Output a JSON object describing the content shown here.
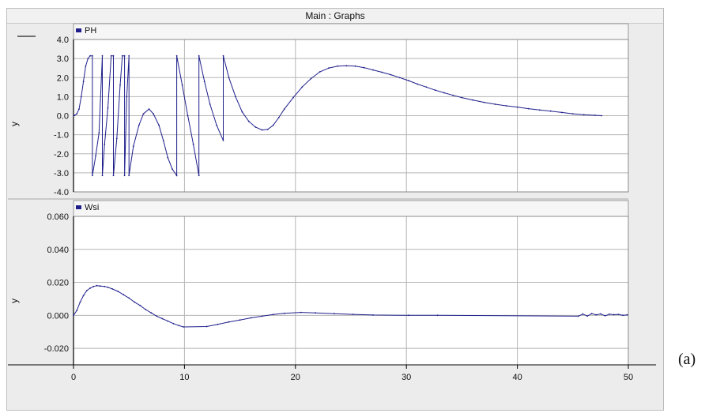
{
  "window": {
    "title": "Main : Graphs"
  },
  "caption": "(a)",
  "colors": {
    "series": "#1f1f8c",
    "grid": "#b5b5b5",
    "axis": "#000000"
  },
  "chart_data": [
    {
      "type": "line",
      "legend": "PH",
      "ylabel": "y",
      "xlim": [
        0,
        50
      ],
      "ylim": [
        -4.0,
        4.0
      ],
      "yticks": [
        "4.0",
        "3.0",
        "2.0",
        "1.0",
        "0.0",
        "-1.0",
        "-2.0",
        "-3.0",
        "-4.0"
      ],
      "grid": true,
      "x": [
        0.0,
        0.1,
        0.3,
        0.5,
        0.7,
        0.9,
        1.1,
        1.3,
        1.5,
        1.7,
        1.7,
        2.0,
        2.3,
        2.6,
        2.6,
        2.8,
        3.1,
        3.4,
        3.6,
        3.6,
        3.9,
        4.2,
        4.4,
        4.6,
        4.6,
        4.8,
        5.0,
        5.0,
        5.4,
        5.9,
        6.3,
        6.8,
        7.2,
        7.7,
        8.1,
        8.5,
        8.9,
        9.3,
        9.3,
        9.8,
        10.3,
        10.8,
        11.3,
        11.3,
        11.8,
        12.3,
        12.9,
        13.5,
        13.5,
        14.0,
        14.6,
        15.2,
        15.8,
        16.4,
        17.0,
        17.5,
        18.0,
        18.5,
        19.0,
        19.8,
        20.6,
        21.4,
        22.2,
        23.0,
        23.8,
        24.6,
        25.4,
        26.2,
        27.0,
        27.8,
        28.6,
        29.4,
        30.2,
        31.0,
        31.8,
        32.6,
        33.4,
        34.2,
        35.0,
        36.0,
        37.0,
        38.0,
        39.0,
        40.0,
        41.0,
        42.0,
        43.0,
        44.0,
        45.0,
        46.0,
        47.0,
        47.6
      ],
      "y": [
        0.0,
        0.02,
        0.1,
        0.35,
        1.0,
        1.8,
        2.6,
        3.0,
        3.14,
        3.14,
        -3.14,
        -2.1,
        -0.9,
        3.14,
        -3.14,
        -1.5,
        0.4,
        3.14,
        3.14,
        -3.14,
        -1.2,
        1.6,
        3.14,
        3.14,
        -3.14,
        1.0,
        3.14,
        -3.14,
        -1.6,
        -0.5,
        0.1,
        0.35,
        0.1,
        -0.5,
        -1.3,
        -2.2,
        -2.8,
        -3.14,
        3.14,
        1.6,
        0.0,
        -1.5,
        -3.14,
        3.14,
        1.8,
        0.6,
        -0.5,
        -1.3,
        3.14,
        2.0,
        1.0,
        0.2,
        -0.3,
        -0.6,
        -0.75,
        -0.72,
        -0.5,
        -0.1,
        0.35,
        0.95,
        1.5,
        1.95,
        2.3,
        2.5,
        2.6,
        2.62,
        2.6,
        2.52,
        2.4,
        2.28,
        2.15,
        2.0,
        1.84,
        1.66,
        1.5,
        1.34,
        1.2,
        1.07,
        0.95,
        0.82,
        0.7,
        0.6,
        0.52,
        0.45,
        0.37,
        0.3,
        0.24,
        0.17,
        0.1,
        0.05,
        0.02,
        0.0
      ]
    },
    {
      "type": "line",
      "legend": "Wsi",
      "ylabel": "y",
      "xlim": [
        0,
        50
      ],
      "ylim": [
        -0.03,
        0.06
      ],
      "yticks": [
        "0.060",
        "0.040",
        "0.020",
        "0.000",
        "-0.020"
      ],
      "xticks": [
        "0",
        "10",
        "20",
        "30",
        "40",
        "50"
      ],
      "grid": true,
      "x": [
        0.0,
        0.3,
        0.6,
        0.9,
        1.2,
        1.5,
        1.8,
        2.1,
        2.4,
        2.8,
        3.1,
        3.5,
        4.0,
        4.5,
        5.0,
        5.5,
        6.0,
        6.5,
        7.0,
        7.5,
        8.0,
        8.5,
        9.0,
        9.5,
        9.9,
        12.0,
        13.0,
        14.0,
        15.0,
        16.0,
        17.0,
        18.0,
        19.0,
        20.5,
        21.8,
        23.5,
        25.2,
        27.0,
        30.2,
        32.8,
        45.5,
        45.9,
        46.3,
        46.7,
        47.1,
        47.5,
        47.9,
        48.3,
        48.7,
        49.1,
        49.5,
        49.9
      ],
      "y": [
        0.0,
        0.003,
        0.008,
        0.012,
        0.015,
        0.0165,
        0.0175,
        0.018,
        0.0178,
        0.0175,
        0.017,
        0.016,
        0.0145,
        0.0125,
        0.0105,
        0.008,
        0.006,
        0.0035,
        0.0015,
        -0.0005,
        -0.002,
        -0.0035,
        -0.005,
        -0.0062,
        -0.007,
        -0.0068,
        -0.0055,
        -0.004,
        -0.0028,
        -0.0015,
        -0.0005,
        0.0005,
        0.0012,
        0.0018,
        0.0015,
        0.001,
        0.0006,
        0.0002,
        0.0,
        0.0,
        -0.0005,
        0.0008,
        -0.0004,
        0.001,
        0.0003,
        0.0009,
        -0.0002,
        0.0007,
        0.0004,
        0.0006,
        0.0,
        0.0003
      ]
    }
  ]
}
